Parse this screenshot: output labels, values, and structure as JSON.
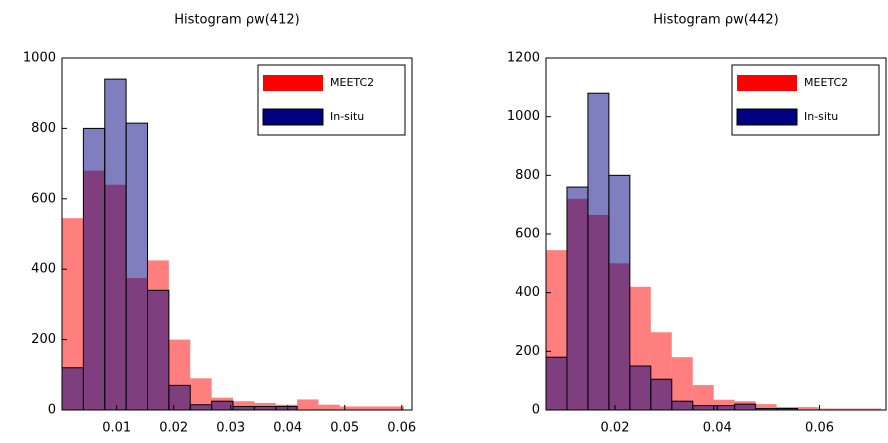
{
  "chart_data": [
    {
      "type": "histogram",
      "title": "Histogram ρw(412)",
      "bins": [
        0.0004,
        0.00415,
        0.0079,
        0.01165,
        0.0154,
        0.01915,
        0.0229,
        0.02665,
        0.0304,
        0.03415,
        0.0379,
        0.04165,
        0.0454,
        0.04915,
        0.0529,
        0.05665,
        0.0604
      ],
      "series": [
        {
          "name": "MEETC2",
          "color": "#ff0000",
          "values": [
            545,
            680,
            640,
            375,
            425,
            200,
            90,
            35,
            25,
            20,
            15,
            30,
            15,
            10,
            10,
            10
          ]
        },
        {
          "name": "In-situ",
          "color": "#000080",
          "values": [
            120,
            800,
            940,
            815,
            340,
            70,
            15,
            25,
            10,
            10,
            10,
            0,
            0,
            0,
            0,
            0
          ]
        }
      ],
      "xlim": [
        0.0004,
        0.0618
      ],
      "xticks": [
        0.01,
        0.02,
        0.03,
        0.04,
        0.05,
        0.06
      ],
      "ylim": [
        0,
        1000
      ],
      "yticks": [
        0,
        200,
        400,
        600,
        800,
        1000
      ],
      "legend": "upper right"
    },
    {
      "type": "histogram",
      "title": "Histogram ρw(442)",
      "bins": [
        0.0065,
        0.0106,
        0.0147,
        0.0188,
        0.0229,
        0.027,
        0.0311,
        0.0352,
        0.0393,
        0.0434,
        0.0475,
        0.0516,
        0.0557,
        0.0598,
        0.0639,
        0.068,
        0.0721
      ],
      "series": [
        {
          "name": "MEETC2",
          "color": "#ff0000",
          "values": [
            545,
            720,
            665,
            500,
            420,
            265,
            180,
            85,
            35,
            30,
            20,
            10,
            10,
            5,
            5,
            5
          ]
        },
        {
          "name": "In-situ",
          "color": "#000080",
          "values": [
            180,
            760,
            1080,
            800,
            150,
            105,
            30,
            15,
            15,
            20,
            5,
            5,
            0,
            0,
            0,
            0
          ]
        }
      ],
      "xlim": [
        0.0065,
        0.073
      ],
      "xticks": [
        0.02,
        0.04,
        0.06
      ],
      "ylim": [
        0,
        1200
      ],
      "yticks": [
        0,
        200,
        400,
        600,
        800,
        1000,
        1200
      ],
      "legend": "upper right"
    }
  ]
}
